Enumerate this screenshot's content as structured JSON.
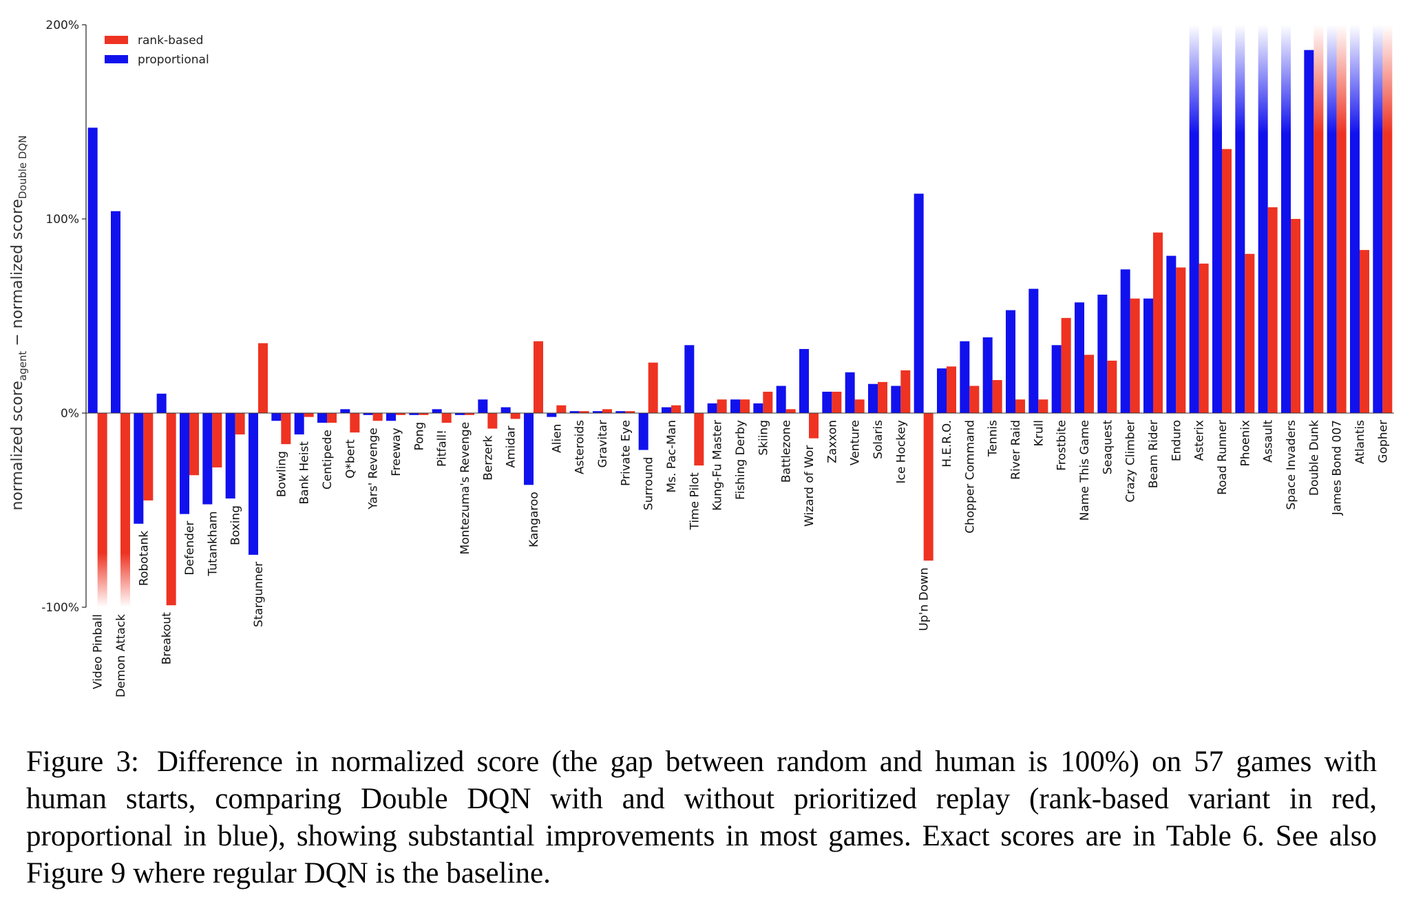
{
  "figure": {
    "caption_label": "Figure 3:",
    "caption_text": "Difference in normalized score (the gap between random and human is 100%) on 57 games with human starts, comparing Double DQN with and without prioritized replay (rank-based variant in red, proportional in blue), showing substantial improvements in most games. Exact scores are in Table 6. See also Figure 9 where regular DQN is the baseline."
  },
  "chart_data": {
    "type": "bar",
    "ylabel_main": "normalized score",
    "ylabel_sub1": "agent",
    "ylabel_mid": " − normalized score",
    "ylabel_sub2": "Double DQN",
    "ylim": [
      -100,
      200
    ],
    "yticks": [
      "200%",
      "100%",
      "0%",
      "-100%"
    ],
    "ytick_values": [
      200,
      100,
      0,
      -100
    ],
    "grid": false,
    "legend_position": "top-left",
    "colors": {
      "rank": "#ee3322",
      "proportional": "#1111ee"
    },
    "series": [
      {
        "name": "rank-based",
        "values": [
          -100,
          -100,
          -45,
          -99,
          -32,
          -28,
          -11,
          36,
          -16,
          -2,
          -5,
          -10,
          -4,
          -1,
          -1,
          -5,
          -1,
          -8,
          -3,
          37,
          4,
          1,
          2,
          1,
          26,
          4,
          -27,
          7,
          7,
          11,
          2,
          -13,
          11,
          7,
          16,
          22,
          -76,
          24,
          14,
          17,
          7,
          7,
          49,
          30,
          27,
          59,
          93,
          75,
          77,
          136,
          82,
          106,
          100,
          200,
          200,
          84,
          200
        ]
      },
      {
        "name": "proportional",
        "values": [
          147,
          104,
          -57,
          10,
          -52,
          -47,
          -44,
          -73,
          -4,
          -11,
          -5,
          2,
          -1,
          -4,
          -1,
          2,
          -1,
          7,
          3,
          -37,
          -2,
          1,
          1,
          1,
          -19,
          3,
          35,
          5,
          7,
          5,
          14,
          33,
          11,
          21,
          15,
          14,
          113,
          23,
          37,
          39,
          53,
          64,
          35,
          57,
          61,
          74,
          59,
          81,
          200,
          200,
          200,
          200,
          200,
          187,
          200,
          200,
          200
        ]
      }
    ],
    "categories": [
      "Video Pinball",
      "Demon Attack",
      "Robotank",
      "Breakout",
      "Defender",
      "Tutankham",
      "Boxing",
      "Stargunner",
      "Bowling",
      "Bank Heist",
      "Centipede",
      "Q*bert",
      "Yars' Revenge",
      "Freeway",
      "Pong",
      "Pitfall!",
      "Montezuma's Revenge",
      "Berzerk",
      "Amidar",
      "Kangaroo",
      "Alien",
      "Asteroids",
      "Gravitar",
      "Private Eye",
      "Surround",
      "Ms. Pac-Man",
      "Time Pilot",
      "Kung-Fu Master",
      "Fishing Derby",
      "Skiing",
      "Battlezone",
      "Wizard of Wor",
      "Zaxxon",
      "Venture",
      "Solaris",
      "Ice Hockey",
      "Up'n Down",
      "H.E.R.O.",
      "Chopper Command",
      "Tennis",
      "River Raid",
      "Krull",
      "Frostbite",
      "Name This Game",
      "Seaquest",
      "Crazy Climber",
      "Beam Rider",
      "Enduro",
      "Asterix",
      "Road Runner",
      "Phoenix",
      "Assault",
      "Space Invaders",
      "Double Dunk",
      "James Bond 007",
      "Atlantis",
      "Gopher"
    ]
  }
}
